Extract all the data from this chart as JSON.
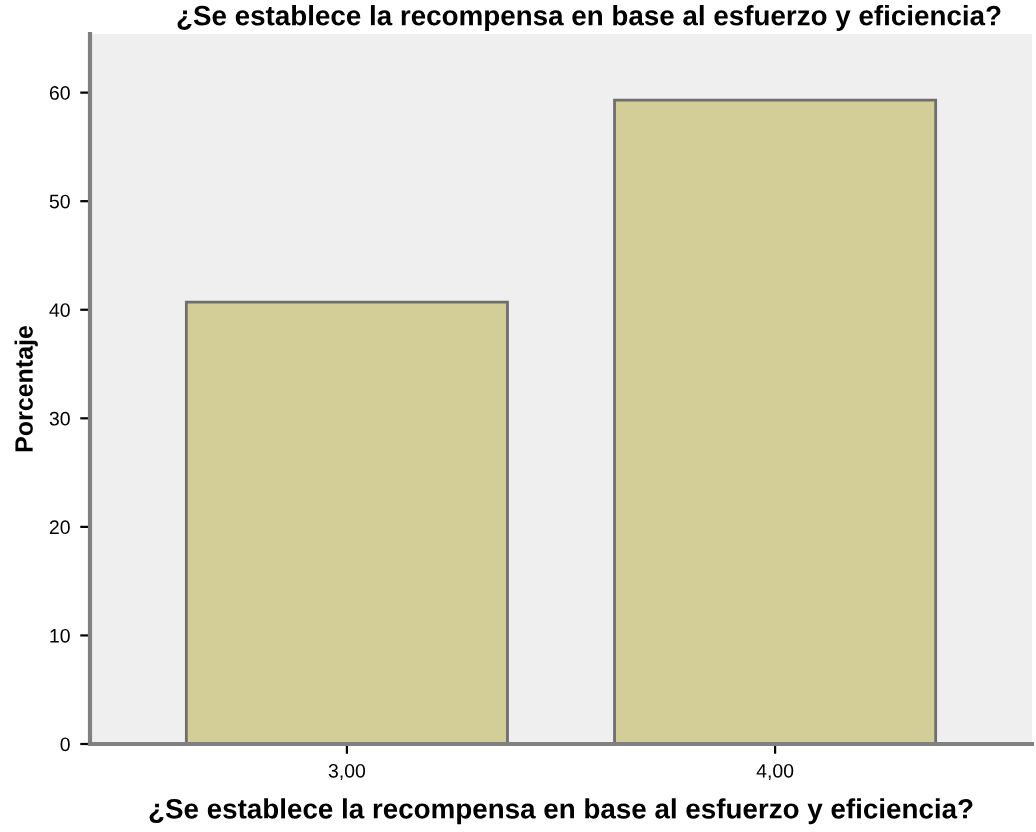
{
  "chart_data": {
    "type": "bar",
    "title": "¿Se establece la recompensa en base al esfuerzo y eficiencia?",
    "xlabel": "¿Se establece la recompensa en base al esfuerzo y eficiencia?",
    "ylabel": "Porcentaje",
    "categories": [
      "3,00",
      "4,00"
    ],
    "values": [
      40.7,
      59.3
    ],
    "color": "#d3ce97",
    "ylim": [
      0,
      65.4
    ],
    "yticks": [
      0,
      10,
      20,
      30,
      40,
      50,
      60
    ],
    "grid": false,
    "legend": false
  }
}
